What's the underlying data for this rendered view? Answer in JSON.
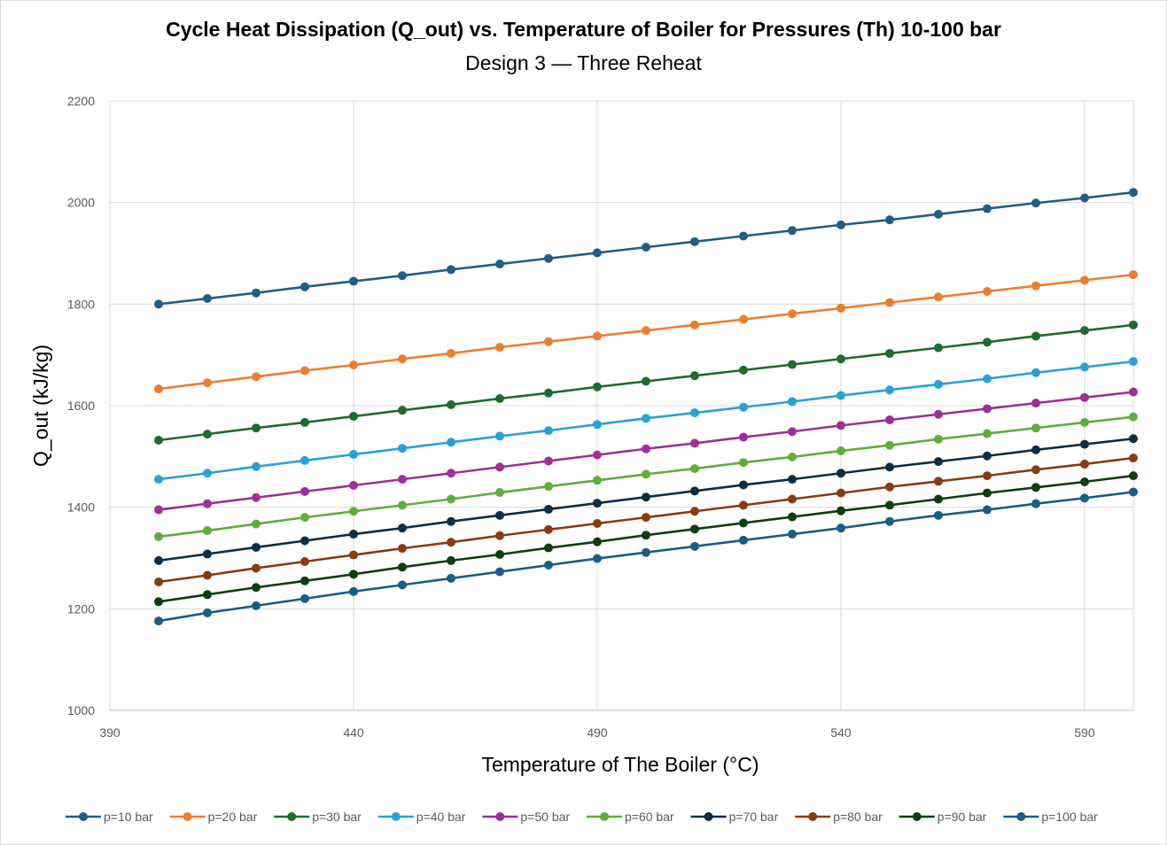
{
  "chart_data": {
    "type": "line",
    "title": "Cycle Heat Dissipation  (Q_out) vs. Temperature of Boiler for Pressures (Th) 10-100 bar",
    "subtitle": "Design 3 — Three Reheat",
    "xlabel": "Temperature of The Boiler (°C)",
    "ylabel": "Q_out (kJ/kg)",
    "xlim": [
      390,
      600
    ],
    "ylim": [
      1000,
      2200
    ],
    "xticks": [
      390,
      440,
      490,
      540,
      590
    ],
    "yticks": [
      1000,
      1200,
      1400,
      1600,
      1800,
      2000,
      2200
    ],
    "grid": true,
    "legend_position": "bottom",
    "x": [
      400,
      410,
      420,
      430,
      440,
      450,
      460,
      470,
      480,
      490,
      500,
      510,
      520,
      530,
      540,
      550,
      560,
      570,
      580,
      590,
      600
    ],
    "series": [
      {
        "name": "p=10 bar",
        "color": "#1f5f86",
        "values": [
          1800,
          1811,
          1822,
          1834,
          1845,
          1856,
          1868,
          1879,
          1890,
          1901,
          1912,
          1923,
          1934,
          1945,
          1956,
          1966,
          1977,
          1988,
          1999,
          2009,
          2020
        ]
      },
      {
        "name": "p=20 bar",
        "color": "#ed7d31",
        "values": [
          1633,
          1645,
          1657,
          1669,
          1680,
          1692,
          1703,
          1715,
          1726,
          1737,
          1748,
          1759,
          1770,
          1781,
          1792,
          1803,
          1814,
          1825,
          1836,
          1847,
          1858
        ]
      },
      {
        "name": "p=30 bar",
        "color": "#1e6b30",
        "values": [
          1532,
          1544,
          1556,
          1567,
          1579,
          1591,
          1602,
          1614,
          1625,
          1637,
          1648,
          1659,
          1670,
          1681,
          1692,
          1703,
          1714,
          1725,
          1737,
          1748,
          1759
        ]
      },
      {
        "name": "p=40 bar",
        "color": "#2aa0d8",
        "values": [
          1455,
          1467,
          1480,
          1492,
          1504,
          1516,
          1528,
          1540,
          1551,
          1563,
          1575,
          1586,
          1597,
          1608,
          1620,
          1631,
          1642,
          1653,
          1665,
          1676,
          1687
        ]
      },
      {
        "name": "p=50 bar",
        "color": "#9e2f98",
        "values": [
          1395,
          1407,
          1419,
          1431,
          1443,
          1455,
          1467,
          1479,
          1491,
          1503,
          1515,
          1526,
          1538,
          1549,
          1561,
          1572,
          1583,
          1594,
          1605,
          1616,
          1627
        ]
      },
      {
        "name": "p=60 bar",
        "color": "#5fad3b",
        "values": [
          1342,
          1354,
          1367,
          1380,
          1392,
          1404,
          1416,
          1429,
          1441,
          1453,
          1465,
          1476,
          1488,
          1499,
          1511,
          1522,
          1534,
          1545,
          1556,
          1567,
          1578
        ]
      },
      {
        "name": "p=70 bar",
        "color": "#0e2d45",
        "values": [
          1295,
          1308,
          1321,
          1334,
          1347,
          1359,
          1372,
          1384,
          1396,
          1408,
          1420,
          1432,
          1444,
          1455,
          1467,
          1479,
          1490,
          1501,
          1513,
          1524,
          1535
        ]
      },
      {
        "name": "p=80 bar",
        "color": "#8b3a0f",
        "values": [
          1253,
          1266,
          1280,
          1293,
          1306,
          1319,
          1331,
          1344,
          1356,
          1368,
          1380,
          1392,
          1404,
          1416,
          1428,
          1440,
          1451,
          1462,
          1474,
          1485,
          1497
        ]
      },
      {
        "name": "p=90 bar",
        "color": "#0f3d10",
        "values": [
          1214,
          1228,
          1242,
          1255,
          1268,
          1282,
          1295,
          1307,
          1320,
          1332,
          1345,
          1357,
          1369,
          1381,
          1393,
          1404,
          1416,
          1428,
          1439,
          1450,
          1462
        ]
      },
      {
        "name": "p=100 bar",
        "color": "#175e84",
        "values": [
          1176,
          1192,
          1206,
          1220,
          1234,
          1247,
          1260,
          1273,
          1286,
          1299,
          1311,
          1323,
          1335,
          1347,
          1359,
          1372,
          1384,
          1395,
          1407,
          1418,
          1430
        ]
      }
    ]
  }
}
